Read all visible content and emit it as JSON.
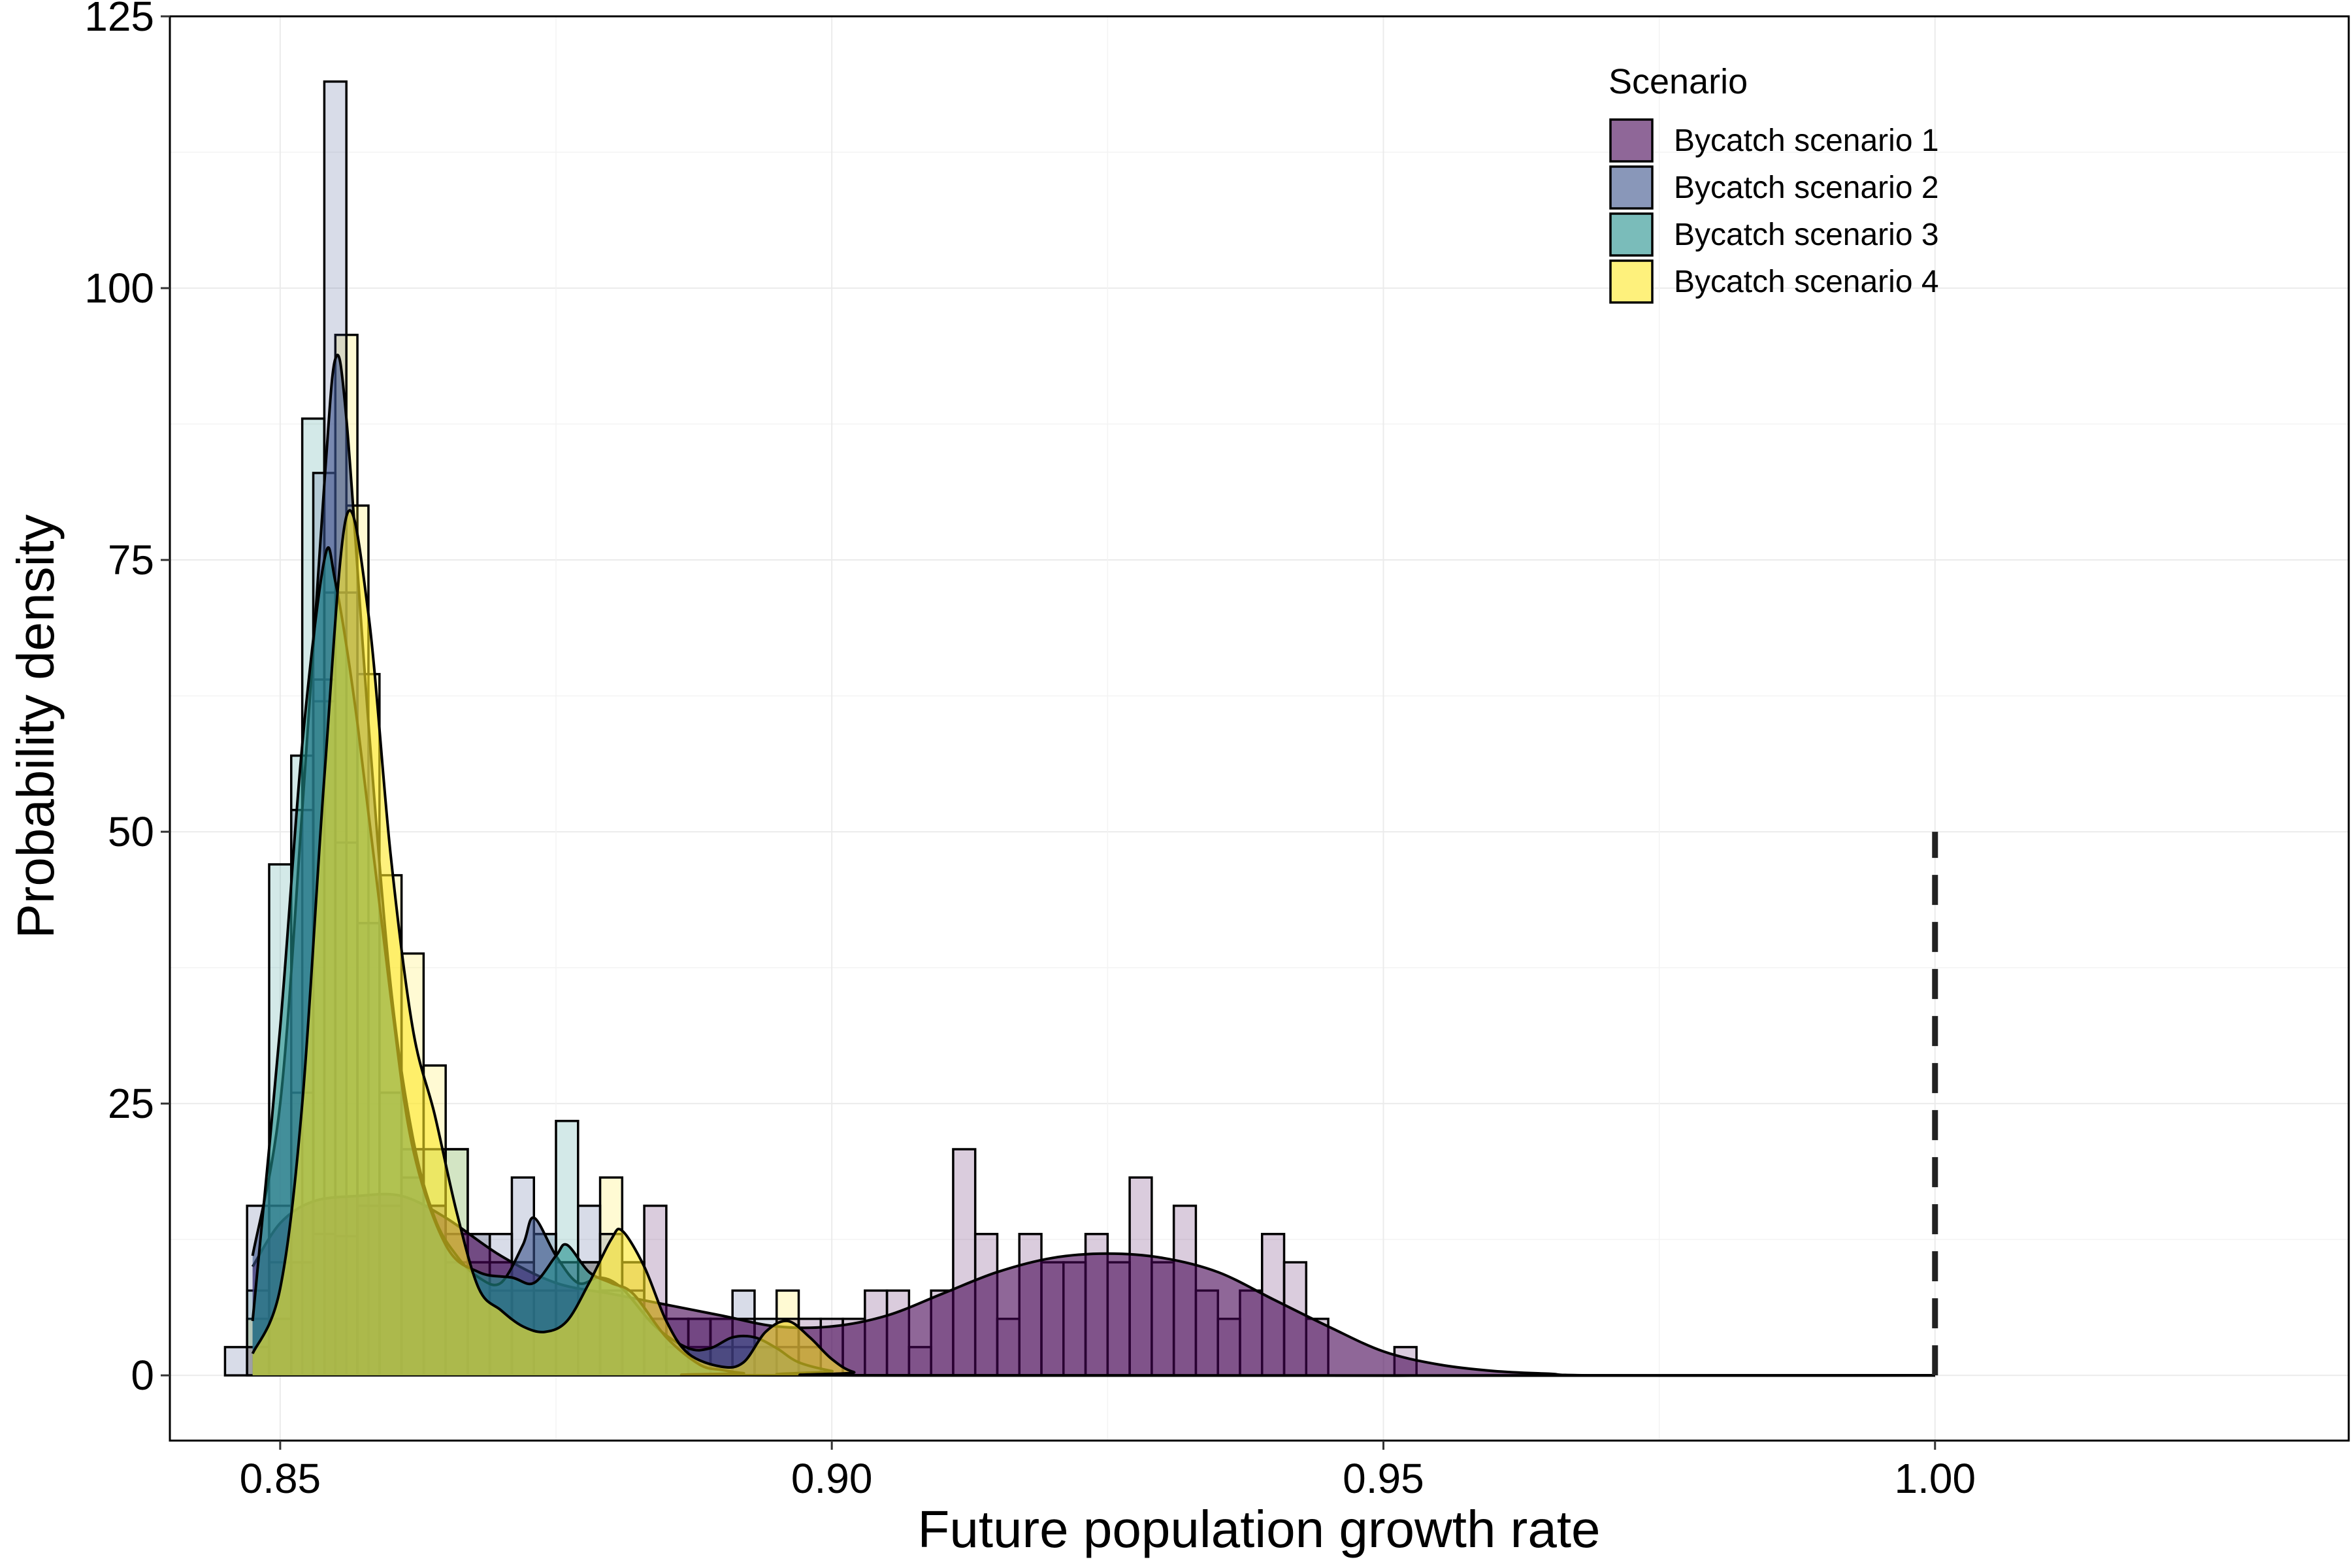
{
  "chart_data": {
    "type": "histogram-density",
    "xlabel": "Future population growth rate",
    "ylabel": "Probability density",
    "xlim": [
      0.84,
      1.0375
    ],
    "ylim": [
      -6,
      125
    ],
    "x_ticks": [
      0.85,
      0.9,
      0.95,
      1.0
    ],
    "x_tick_labels": [
      "0.85",
      "0.90",
      "0.95",
      "1.00"
    ],
    "y_ticks": [
      0,
      25,
      50,
      75,
      100,
      125
    ],
    "y_tick_labels": [
      "0",
      "25",
      "50",
      "75",
      "100",
      "125"
    ],
    "grid": true,
    "bin_width": 0.002,
    "reference_line": {
      "x": 1.0,
      "y_top": 50,
      "style": "dashed"
    },
    "legend": {
      "title": "Scenario",
      "position": "top-right",
      "entries": [
        "Bycatch scenario 1",
        "Bycatch scenario 2",
        "Bycatch scenario 3",
        "Bycatch scenario 4"
      ]
    },
    "series": [
      {
        "name": "Bycatch scenario 1",
        "color": "#440154",
        "histogram": [
          [
            0.848,
            2.6
          ],
          [
            0.85,
            5.2
          ],
          [
            0.852,
            10.4
          ],
          [
            0.854,
            13
          ],
          [
            0.856,
            12.8
          ],
          [
            0.858,
            15.6
          ],
          [
            0.86,
            15.6
          ],
          [
            0.862,
            18.2
          ],
          [
            0.864,
            15.6
          ],
          [
            0.866,
            13
          ],
          [
            0.868,
            13
          ],
          [
            0.87,
            10.4
          ],
          [
            0.872,
            10.4
          ],
          [
            0.874,
            7.8
          ],
          [
            0.876,
            10.4
          ],
          [
            0.878,
            10.4
          ],
          [
            0.88,
            7.8
          ],
          [
            0.882,
            10.4
          ],
          [
            0.884,
            15.6
          ],
          [
            0.886,
            5.2
          ],
          [
            0.888,
            5.2
          ],
          [
            0.89,
            5.2
          ],
          [
            0.892,
            5.2
          ],
          [
            0.894,
            2.6
          ],
          [
            0.896,
            5.2
          ],
          [
            0.898,
            5.2
          ],
          [
            0.9,
            5.2
          ],
          [
            0.902,
            5.2
          ],
          [
            0.904,
            7.8
          ],
          [
            0.906,
            7.8
          ],
          [
            0.908,
            2.6
          ],
          [
            0.91,
            7.8
          ],
          [
            0.912,
            20.8
          ],
          [
            0.914,
            13
          ],
          [
            0.916,
            5.2
          ],
          [
            0.918,
            13
          ],
          [
            0.92,
            10.4
          ],
          [
            0.922,
            10.4
          ],
          [
            0.924,
            13
          ],
          [
            0.926,
            10.4
          ],
          [
            0.928,
            18.2
          ],
          [
            0.93,
            10.4
          ],
          [
            0.932,
            15.6
          ],
          [
            0.934,
            7.8
          ],
          [
            0.936,
            5.2
          ],
          [
            0.938,
            7.8
          ],
          [
            0.94,
            13
          ],
          [
            0.942,
            10.4
          ],
          [
            0.944,
            5.2
          ],
          [
            0.952,
            2.6
          ]
        ],
        "density": [
          [
            0.8475,
            10
          ],
          [
            0.85,
            14
          ],
          [
            0.853,
            16
          ],
          [
            0.857,
            16.5
          ],
          [
            0.861,
            16.5
          ],
          [
            0.865,
            14.5
          ],
          [
            0.87,
            11
          ],
          [
            0.875,
            8.5
          ],
          [
            0.88,
            7.5
          ],
          [
            0.885,
            6.5
          ],
          [
            0.89,
            5.5
          ],
          [
            0.895,
            4.5
          ],
          [
            0.9,
            4.5
          ],
          [
            0.905,
            5.5
          ],
          [
            0.91,
            7.5
          ],
          [
            0.915,
            9.5
          ],
          [
            0.92,
            10.8
          ],
          [
            0.925,
            11.2
          ],
          [
            0.93,
            10.8
          ],
          [
            0.935,
            9.5
          ],
          [
            0.94,
            7
          ],
          [
            0.945,
            4.5
          ],
          [
            0.95,
            2.2
          ],
          [
            0.955,
            1
          ],
          [
            0.96,
            0.4
          ],
          [
            0.965,
            0.15
          ],
          [
            0.97,
            0
          ],
          [
            1.0,
            0
          ]
        ]
      },
      {
        "name": "Bycatch scenario 2",
        "color": "#3B528B",
        "histogram": [
          [
            0.846,
            2.6
          ],
          [
            0.848,
            15.6
          ],
          [
            0.85,
            15.6
          ],
          [
            0.852,
            52
          ],
          [
            0.854,
            83
          ],
          [
            0.855,
            119
          ],
          [
            0.856,
            72
          ],
          [
            0.858,
            41.6
          ],
          [
            0.86,
            26
          ],
          [
            0.862,
            20.8
          ],
          [
            0.864,
            15.6
          ],
          [
            0.866,
            10.4
          ],
          [
            0.868,
            10.4
          ],
          [
            0.87,
            13
          ],
          [
            0.872,
            18.2
          ],
          [
            0.874,
            13
          ],
          [
            0.876,
            10.4
          ],
          [
            0.878,
            15.6
          ],
          [
            0.88,
            13
          ],
          [
            0.884,
            5.2
          ],
          [
            0.886,
            5.2
          ],
          [
            0.888,
            5.2
          ],
          [
            0.89,
            5.2
          ],
          [
            0.892,
            7.8
          ],
          [
            0.894,
            5.2
          ],
          [
            0.896,
            2.6
          ],
          [
            0.898,
            2.6
          ]
        ],
        "density": [
          [
            0.8475,
            11
          ],
          [
            0.85,
            25
          ],
          [
            0.852,
            52
          ],
          [
            0.854,
            82
          ],
          [
            0.855,
            93.5
          ],
          [
            0.856,
            88
          ],
          [
            0.858,
            60
          ],
          [
            0.86,
            36
          ],
          [
            0.862,
            22
          ],
          [
            0.864,
            14.5
          ],
          [
            0.866,
            11
          ],
          [
            0.868,
            9
          ],
          [
            0.87,
            8.5
          ],
          [
            0.872,
            12
          ],
          [
            0.873,
            14.5
          ],
          [
            0.875,
            11
          ],
          [
            0.877,
            8.5
          ],
          [
            0.879,
            9
          ],
          [
            0.881,
            8
          ],
          [
            0.884,
            4.5
          ],
          [
            0.887,
            2.5
          ],
          [
            0.889,
            2.5
          ],
          [
            0.891,
            3.5
          ],
          [
            0.893,
            3.5
          ],
          [
            0.895,
            2.5
          ],
          [
            0.897,
            1.2
          ],
          [
            0.9,
            0.4
          ],
          [
            0.903,
            0
          ],
          [
            1.0,
            0
          ]
        ]
      },
      {
        "name": "Bycatch scenario 3",
        "color": "#21908C",
        "histogram": [
          [
            0.848,
            7.8
          ],
          [
            0.85,
            47
          ],
          [
            0.852,
            57
          ],
          [
            0.853,
            88
          ],
          [
            0.854,
            64
          ],
          [
            0.856,
            49
          ],
          [
            0.858,
            41.6
          ],
          [
            0.86,
            26
          ],
          [
            0.862,
            20.8
          ],
          [
            0.864,
            20.8
          ],
          [
            0.866,
            20.8
          ],
          [
            0.868,
            13
          ],
          [
            0.87,
            10.4
          ],
          [
            0.872,
            10.4
          ],
          [
            0.874,
            13
          ],
          [
            0.876,
            23.4
          ],
          [
            0.878,
            10.4
          ],
          [
            0.88,
            7.8
          ],
          [
            0.882,
            7.8
          ],
          [
            0.884,
            5.2
          ],
          [
            0.888,
            2.6
          ],
          [
            0.89,
            2.6
          ],
          [
            0.892,
            2.6
          ],
          [
            0.894,
            2.6
          ]
        ],
        "density": [
          [
            0.8475,
            5
          ],
          [
            0.85,
            32
          ],
          [
            0.852,
            58
          ],
          [
            0.854,
            75
          ],
          [
            0.855,
            73
          ],
          [
            0.857,
            60
          ],
          [
            0.86,
            35
          ],
          [
            0.862,
            21
          ],
          [
            0.865,
            12
          ],
          [
            0.868,
            9.5
          ],
          [
            0.871,
            9
          ],
          [
            0.873,
            8.5
          ],
          [
            0.875,
            11
          ],
          [
            0.876,
            12
          ],
          [
            0.878,
            9.5
          ],
          [
            0.88,
            8.5
          ],
          [
            0.882,
            7.5
          ],
          [
            0.885,
            3.5
          ],
          [
            0.888,
            1
          ],
          [
            0.89,
            0.5
          ],
          [
            0.892,
            0.2
          ],
          [
            0.895,
            0
          ],
          [
            1.0,
            0
          ]
        ]
      },
      {
        "name": "Bycatch scenario 4",
        "color": "#FDE725",
        "histogram": [
          [
            0.848,
            5.2
          ],
          [
            0.85,
            10.4
          ],
          [
            0.852,
            26
          ],
          [
            0.854,
            62
          ],
          [
            0.855,
            72
          ],
          [
            0.856,
            95.7
          ],
          [
            0.857,
            80
          ],
          [
            0.858,
            64.5
          ],
          [
            0.86,
            46
          ],
          [
            0.862,
            38.8
          ],
          [
            0.864,
            28.5
          ],
          [
            0.866,
            20.8
          ],
          [
            0.868,
            10.4
          ],
          [
            0.87,
            7.8
          ],
          [
            0.872,
            7.8
          ],
          [
            0.874,
            7.8
          ],
          [
            0.876,
            7.8
          ],
          [
            0.878,
            10.4
          ],
          [
            0.88,
            18.2
          ],
          [
            0.882,
            10.4
          ],
          [
            0.884,
            5.2
          ],
          [
            0.886,
            2.6
          ],
          [
            0.888,
            2.6
          ],
          [
            0.89,
            2.6
          ],
          [
            0.894,
            2.6
          ],
          [
            0.896,
            7.8
          ],
          [
            0.898,
            2.6
          ]
        ],
        "density": [
          [
            0.8475,
            2
          ],
          [
            0.85,
            8
          ],
          [
            0.852,
            25
          ],
          [
            0.854,
            55
          ],
          [
            0.856,
            79
          ],
          [
            0.858,
            70
          ],
          [
            0.86,
            48
          ],
          [
            0.862,
            32
          ],
          [
            0.864,
            24
          ],
          [
            0.866,
            15
          ],
          [
            0.868,
            8
          ],
          [
            0.87,
            6
          ],
          [
            0.872,
            4.5
          ],
          [
            0.874,
            4
          ],
          [
            0.876,
            5
          ],
          [
            0.878,
            8.5
          ],
          [
            0.88,
            12.5
          ],
          [
            0.881,
            13.3
          ],
          [
            0.883,
            10
          ],
          [
            0.885,
            5
          ],
          [
            0.887,
            2
          ],
          [
            0.89,
            0.8
          ],
          [
            0.892,
            1.2
          ],
          [
            0.894,
            4
          ],
          [
            0.896,
            5
          ],
          [
            0.898,
            3.5
          ],
          [
            0.9,
            1.5
          ],
          [
            0.902,
            0.3
          ],
          [
            0.905,
            0
          ],
          [
            1.0,
            0
          ]
        ]
      }
    ]
  }
}
